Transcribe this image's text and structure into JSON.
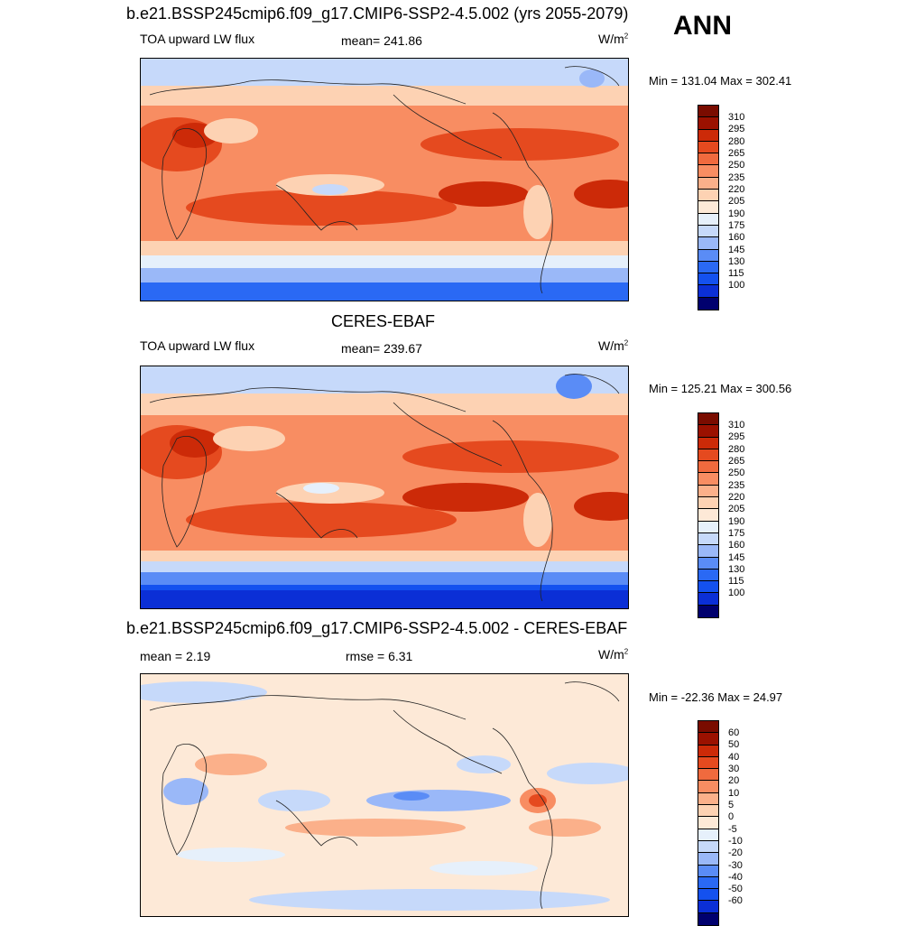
{
  "season": "ANN",
  "colors": {
    "abs_scale": [
      "#00006e",
      "#0b2fd6",
      "#1451ef",
      "#2a69f4",
      "#5a8cf6",
      "#9ab8f8",
      "#c6d9fa",
      "#e6f0fb",
      "#fde9d7",
      "#fdd2b3",
      "#fbb08a",
      "#f88d62",
      "#f06a3e",
      "#e54a1f",
      "#cc2a08",
      "#9b1100",
      "#7a0c00"
    ],
    "diff_scale": [
      "#00006e",
      "#0b2fd6",
      "#1451ef",
      "#2a69f4",
      "#5a8cf6",
      "#9ab8f8",
      "#c6d9fa",
      "#e6f0fb",
      "#fde9d7",
      "#fdd2b3",
      "#fbb08a",
      "#f88d62",
      "#f06a3e",
      "#e54a1f",
      "#cc2a08",
      "#9b1100",
      "#7a0c00"
    ]
  },
  "panel1": {
    "title": "b.e21.BSSP245cmip6.f09_g17.CMIP6-SSP2-4.5.002 (yrs 2055-2079)",
    "variable": "TOA upward LW flux",
    "mean": "mean= 241.86",
    "units": "W/m",
    "units_sup": "2",
    "minmax": "Min = 131.04 Max = 302.41",
    "colorbar_ticks": [
      "310",
      "295",
      "280",
      "265",
      "250",
      "235",
      "220",
      "205",
      "190",
      "175",
      "160",
      "145",
      "130",
      "115",
      "100"
    ]
  },
  "panel2": {
    "title": "CERES-EBAF",
    "variable": "TOA upward LW flux",
    "mean": "mean= 239.67",
    "units": "W/m",
    "units_sup": "2",
    "minmax": "Min = 125.21 Max = 300.56",
    "colorbar_ticks": [
      "310",
      "295",
      "280",
      "265",
      "250",
      "235",
      "220",
      "205",
      "190",
      "175",
      "160",
      "145",
      "130",
      "115",
      "100"
    ]
  },
  "panel3": {
    "title": "b.e21.BSSP245cmip6.f09_g17.CMIP6-SSP2-4.5.002 - CERES-EBAF",
    "mean": "mean =   2.19",
    "rmse": "rmse =   6.31",
    "units": "W/m",
    "units_sup": "2",
    "minmax": "Min = -22.36 Max =  24.97",
    "colorbar_ticks": [
      "60",
      "50",
      "40",
      "30",
      "20",
      "10",
      "5",
      "0",
      "-5",
      "-10",
      "-20",
      "-30",
      "-40",
      "-50",
      "-60"
    ]
  }
}
